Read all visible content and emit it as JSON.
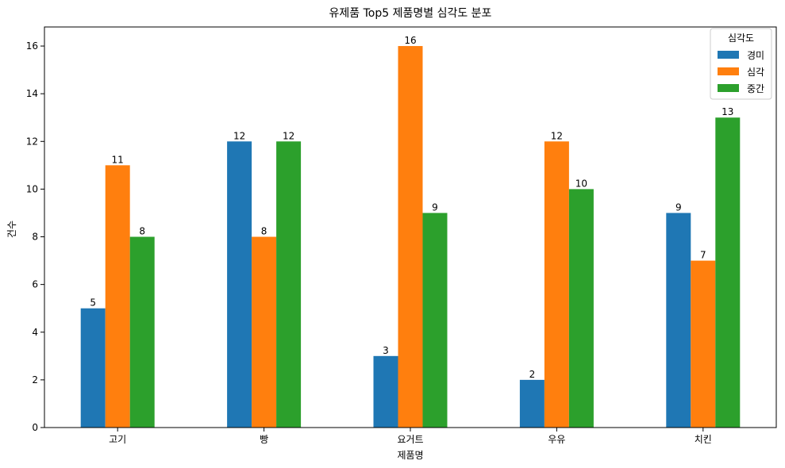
{
  "chart_data": {
    "type": "bar",
    "title": "유제품 Top5 제품명별 심각도 분포",
    "xlabel": "제품명",
    "ylabel": "건수",
    "categories": [
      "고기",
      "빵",
      "요거트",
      "우유",
      "치킨"
    ],
    "series": [
      {
        "name": "경미",
        "color": "#1f77b4",
        "values": [
          5,
          12,
          3,
          2,
          9
        ]
      },
      {
        "name": "심각",
        "color": "#ff7f0e",
        "values": [
          11,
          8,
          16,
          12,
          7
        ]
      },
      {
        "name": "중간",
        "color": "#2ca02c",
        "values": [
          8,
          12,
          9,
          10,
          13
        ]
      }
    ],
    "ylim": [
      0,
      16.8
    ],
    "yticks": [
      0,
      2,
      4,
      6,
      8,
      10,
      12,
      14,
      16
    ],
    "grid": false,
    "legend": {
      "title": "심각도",
      "position": "top-right"
    }
  }
}
